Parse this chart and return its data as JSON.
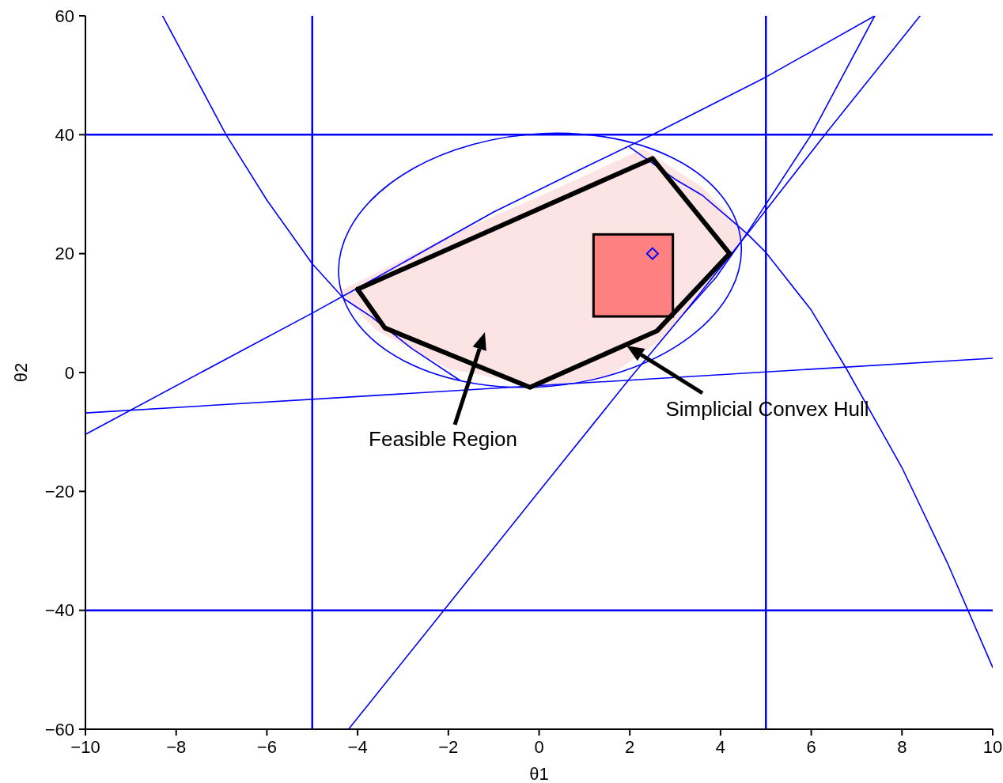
{
  "chart_data": {
    "type": "line",
    "xlabel": "θ1",
    "ylabel": "θ2",
    "xlim": [
      -10,
      10
    ],
    "ylim": [
      -60,
      60
    ],
    "xticks": [
      -10,
      -8,
      -6,
      -4,
      -2,
      0,
      2,
      4,
      6,
      8,
      10
    ],
    "yticks": [
      -60,
      -40,
      -20,
      0,
      20,
      40,
      60
    ],
    "marker": "none",
    "ref_lines": [
      {
        "axis": "x",
        "value": -5,
        "color": "#0000ff"
      },
      {
        "axis": "x",
        "value": 5,
        "color": "#0000ff"
      },
      {
        "axis": "y",
        "value": 40,
        "color": "#0000ff"
      },
      {
        "axis": "y",
        "value": -40,
        "color": "#0000ff"
      }
    ],
    "series": [
      {
        "color": "#0000ff",
        "x": [
          -8.3,
          -7.6,
          -6.9,
          -6,
          -5,
          -4.3,
          -3.7,
          -2.8,
          -1.75
        ],
        "values": [
          60,
          50,
          40,
          29,
          18.3,
          12.4,
          9.4,
          4,
          -1.3
        ]
      },
      {
        "color": "#0000ff",
        "x": [
          2,
          3,
          3.6,
          4.58,
          5,
          6,
          6.77,
          8,
          9,
          10
        ],
        "values": [
          37.9,
          32.5,
          29.8,
          23.4,
          20.2,
          10.5,
          0.7,
          -16,
          -32,
          -49.6
        ]
      },
      {
        "color": "#0000ff",
        "x": [
          -10,
          10
        ],
        "values": [
          -6.8,
          2.4
        ]
      },
      {
        "color": "#0000ff",
        "x": [
          -10,
          -6.5,
          -5,
          -4,
          -1,
          1,
          2.5,
          5,
          7.4
        ],
        "values": [
          -10.4,
          3.9,
          10,
          14.2,
          27,
          34.5,
          40,
          49.7,
          60
        ]
      },
      {
        "color": "#0000ff",
        "x": [
          -4.2,
          -2.1,
          0,
          2,
          3.2,
          4.6,
          6.3,
          8.4
        ],
        "values": [
          -60,
          -40,
          -20,
          -1,
          10,
          23.4,
          40,
          60
        ]
      },
      {
        "color": "#0000ff",
        "x": [
          3.2,
          3.9,
          4.58,
          6,
          7.4
        ],
        "values": [
          10,
          16,
          23.4,
          40,
          60
        ]
      },
      {
        "color": "#000000",
        "x": [
          -4,
          2.5,
          4.2
        ],
        "values": [
          14,
          36,
          20
        ]
      },
      {
        "color": "#000000",
        "x": [
          -4,
          -3.4,
          -0.2,
          2.6,
          4.2
        ],
        "values": [
          14,
          7.5,
          -2.5,
          7,
          20
        ]
      },
      {
        "type": "scatter",
        "color": "#0000ff",
        "marker": "diamond",
        "x": [
          2.5
        ],
        "values": [
          20
        ]
      }
    ],
    "annotations": [
      "Feasible Region",
      "Simplicial Convex Hull"
    ]
  }
}
